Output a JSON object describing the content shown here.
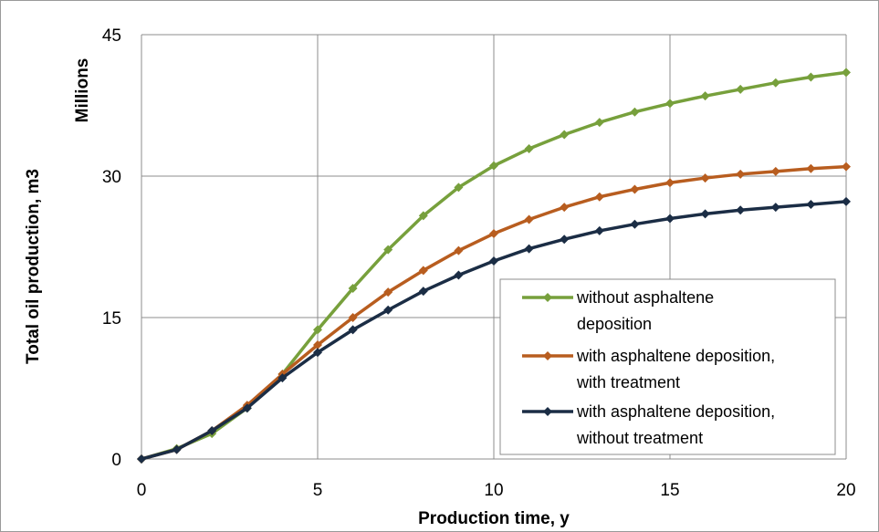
{
  "chart_data": {
    "type": "line",
    "xlabel": "Production time, y",
    "ylabel": "Total oil production, m3",
    "y_unit_label": "Millions",
    "xlim": [
      0,
      20
    ],
    "ylim": [
      0,
      45
    ],
    "x_ticks": [
      0,
      5,
      10,
      15,
      20
    ],
    "y_ticks": [
      0,
      15,
      30,
      45
    ],
    "grid": true,
    "legend_position": "bottom-right",
    "x": [
      0,
      1,
      2,
      3,
      4,
      5,
      6,
      7,
      8,
      9,
      10,
      11,
      12,
      13,
      14,
      15,
      16,
      17,
      18,
      19,
      20
    ],
    "series": [
      {
        "name": "without asphaltene deposition",
        "legend_lines": [
          "without asphaltene",
          "deposition"
        ],
        "color": "#77a03c",
        "values": [
          0,
          1.1,
          2.7,
          5.4,
          9.0,
          13.7,
          18.1,
          22.2,
          25.8,
          28.8,
          31.1,
          32.9,
          34.4,
          35.7,
          36.8,
          37.7,
          38.5,
          39.2,
          39.9,
          40.5,
          41.0
        ]
      },
      {
        "name": "with asphaltene deposition, with treatment",
        "legend_lines": [
          "with asphaltene deposition,",
          "with treatment"
        ],
        "color": "#b85d1f",
        "values": [
          0,
          1.0,
          3.0,
          5.7,
          9.0,
          12.1,
          15.0,
          17.7,
          20.0,
          22.1,
          23.9,
          25.4,
          26.7,
          27.8,
          28.6,
          29.3,
          29.8,
          30.2,
          30.5,
          30.8,
          31.0
        ]
      },
      {
        "name": "with asphaltene deposition, without treatment",
        "legend_lines": [
          "with asphaltene deposition,",
          "without treatment"
        ],
        "color": "#1b2d45",
        "values": [
          0,
          1.0,
          3.0,
          5.4,
          8.6,
          11.3,
          13.7,
          15.8,
          17.8,
          19.5,
          21.0,
          22.3,
          23.3,
          24.2,
          24.9,
          25.5,
          26.0,
          26.4,
          26.7,
          27.0,
          27.3
        ]
      }
    ]
  }
}
